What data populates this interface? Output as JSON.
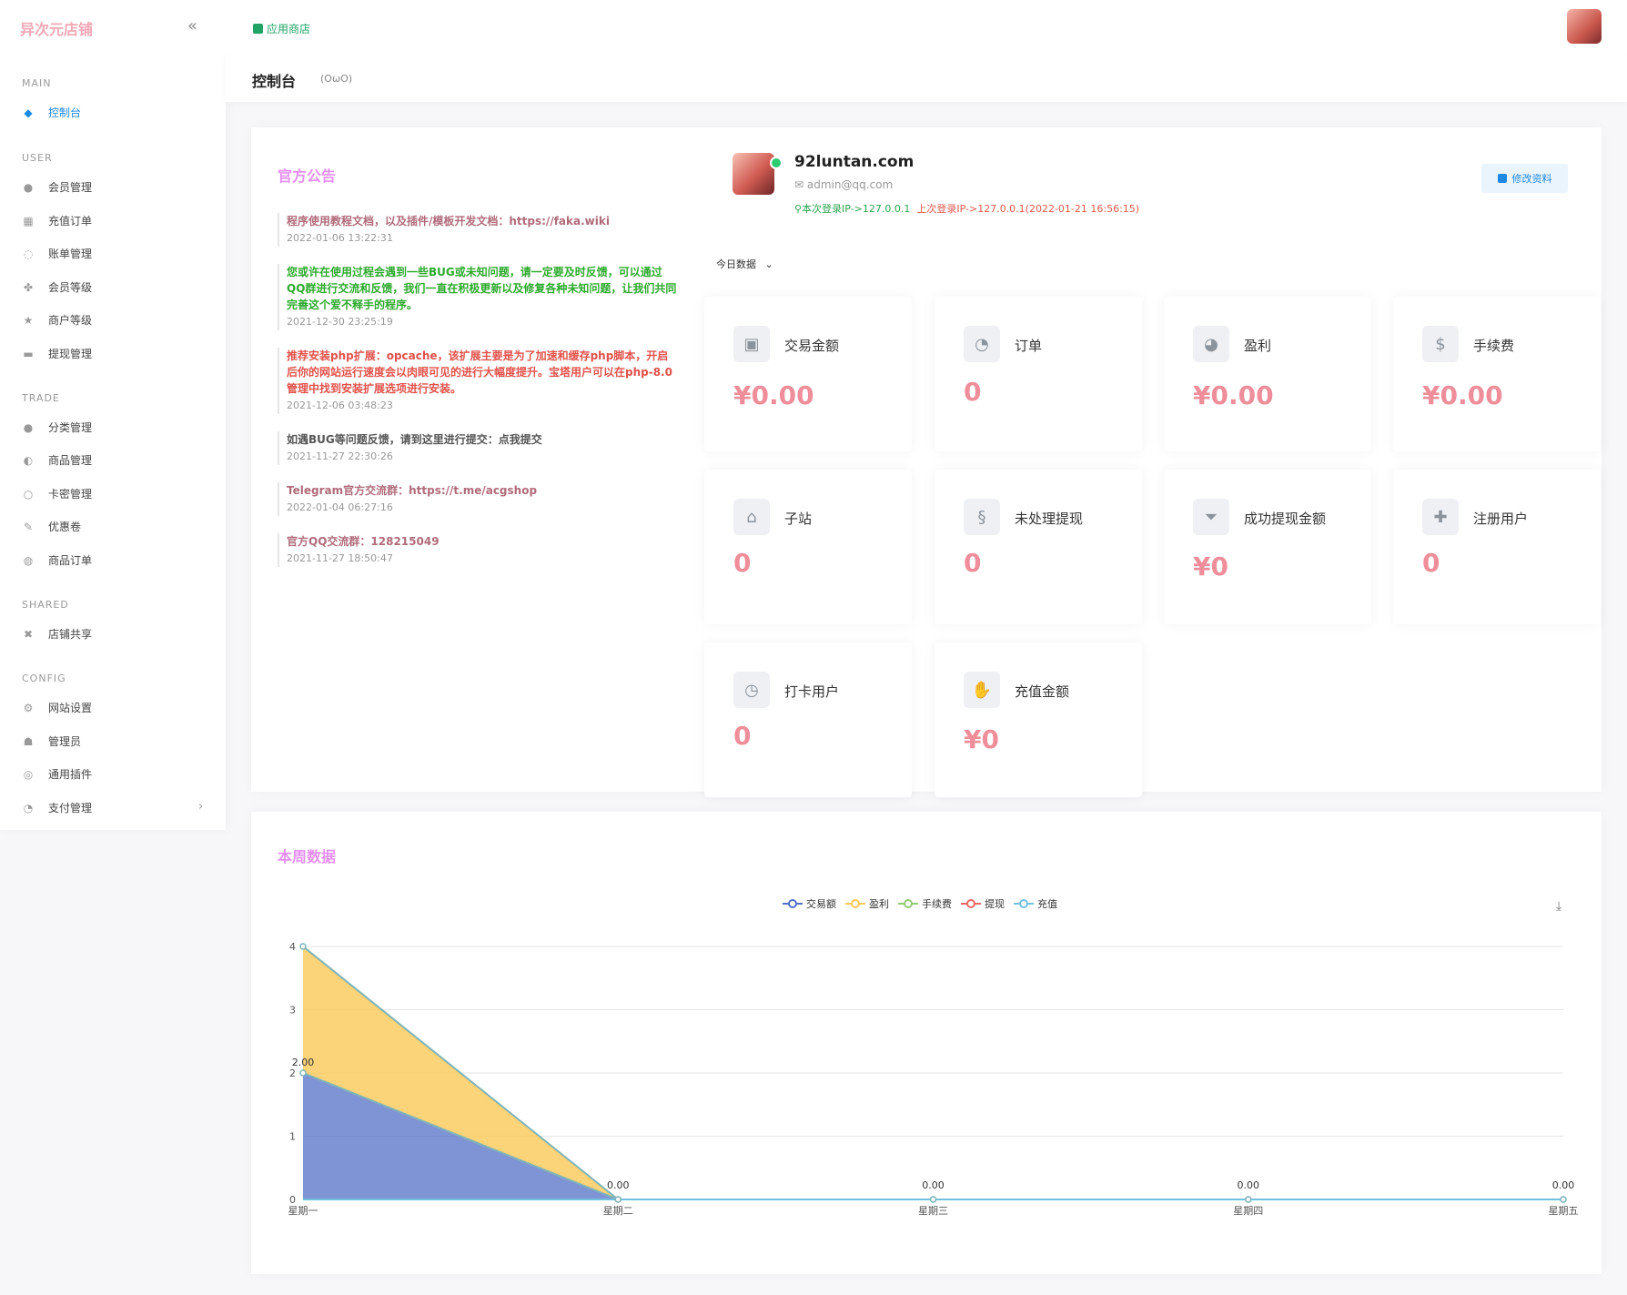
{
  "sidebar": {
    "brand": "异次元店铺",
    "sections": {
      "main": "MAIN",
      "user": "USER",
      "trade": "TRADE",
      "shared": "SHARED",
      "config": "CONFIG"
    },
    "items": [
      {
        "label": "控制台",
        "icon": "dashboard-icon"
      },
      {
        "label": "会员管理",
        "icon": "user-icon"
      },
      {
        "label": "充值订单",
        "icon": "recharge-icon"
      },
      {
        "label": "账单管理",
        "icon": "bill-icon"
      },
      {
        "label": "会员等级",
        "icon": "level-icon"
      },
      {
        "label": "商户等级",
        "icon": "merchant-icon"
      },
      {
        "label": "提现管理",
        "icon": "withdraw-icon"
      },
      {
        "label": "分类管理",
        "icon": "category-icon"
      },
      {
        "label": "商品管理",
        "icon": "product-icon"
      },
      {
        "label": "卡密管理",
        "icon": "card-icon"
      },
      {
        "label": "优惠卷",
        "icon": "coupon-icon"
      },
      {
        "label": "商品订单",
        "icon": "order-icon"
      },
      {
        "label": "店铺共享",
        "icon": "share-icon"
      },
      {
        "label": "网站设置",
        "icon": "settings-icon"
      },
      {
        "label": "管理员",
        "icon": "admin-icon"
      },
      {
        "label": "通用插件",
        "icon": "plugin-icon"
      },
      {
        "label": "支付管理",
        "icon": "payment-icon"
      }
    ]
  },
  "header": {
    "app_store": "应用商店",
    "page_title": "控制台",
    "page_sub": "(OωO)"
  },
  "announcements": {
    "title": "官方公告",
    "items": [
      {
        "text": "程序使用教程文档，以及插件/模板开发文档：https://faka.wiki",
        "time": "2022-01-06 13:22:31",
        "color": "#b06b7a"
      },
      {
        "text": "您或许在使用过程会遇到一些BUG或未知问题，请一定要及时反馈，可以通过QQ群进行交流和反馈，我们一直在积极更新以及修复各种未知问题，让我们共同完善这个爱不释手的程序。",
        "time": "2021-12-30 23:25:19",
        "color": "#2eaa2e"
      },
      {
        "text": "推荐安装php扩展：opcache，该扩展主要是为了加速和缓存php脚本，开启后你的网站运行速度会以肉眼可见的进行大幅度提升。宝塔用户可以在php-8.0管理中找到安装扩展选项进行安装。",
        "time": "2021-12-06 03:48:23",
        "color": "#e2514a"
      },
      {
        "text": "如遇BUG等问题反馈，请到这里进行提交：点我提交",
        "time": "2021-11-27 22:30:26",
        "color": "#555555"
      },
      {
        "text": "Telegram官方交流群：https://t.me/acgshop",
        "time": "2022-01-04 06:27:16",
        "color": "#b06b7a"
      },
      {
        "text": "官方QQ交流群：128215049",
        "time": "2021-11-27 18:50:47",
        "color": "#b06b7a"
      }
    ]
  },
  "profile": {
    "name": "92luntan.com",
    "email": "admin@qq.com",
    "current_ip": "本次登录IP->127.0.0.1",
    "last_ip": "上次登录IP->127.0.0.1(2022-01-21 16:56:15)",
    "edit_label": "修改资料",
    "today_label": "今日数据"
  },
  "stats": [
    {
      "label": "交易金额",
      "value": "¥0.00",
      "icon": "bag-icon"
    },
    {
      "label": "订单",
      "value": "0",
      "icon": "pie-icon"
    },
    {
      "label": "盈利",
      "value": "¥0.00",
      "icon": "pie-icon"
    },
    {
      "label": "手续费",
      "value": "¥0.00",
      "icon": "coin-icon"
    },
    {
      "label": "子站",
      "value": "0",
      "icon": "house-icon"
    },
    {
      "label": "未处理提现",
      "value": "0",
      "icon": "dollar-icon"
    },
    {
      "label": "成功提现金额",
      "value": "¥0",
      "icon": "funnel-dollar-icon"
    },
    {
      "label": "注册用户",
      "value": "0",
      "icon": "user-plus-icon"
    },
    {
      "label": "打卡用户",
      "value": "0",
      "icon": "clock-icon"
    },
    {
      "label": "充值金额",
      "value": "¥0",
      "icon": "hand-coin-icon"
    }
  ],
  "week": {
    "title": "本周数据",
    "download_icon": "download-icon"
  },
  "chart_data": {
    "type": "area",
    "categories": [
      "星期一",
      "星期二",
      "星期三",
      "星期四",
      "星期五"
    ],
    "ylim": [
      0,
      4
    ],
    "yticks": [
      "0",
      "1",
      "2",
      "3",
      "4"
    ],
    "series": [
      {
        "name": "交易额",
        "color": "#5470c6",
        "values": [
          2,
          0,
          0,
          0,
          0
        ]
      },
      {
        "name": "盈利",
        "color": "#fac858",
        "values": [
          2,
          0,
          0,
          0,
          0
        ]
      },
      {
        "name": "手续费",
        "color": "#91cc75",
        "values": [
          0,
          0,
          0,
          0,
          0
        ]
      },
      {
        "name": "提现",
        "color": "#ee6666",
        "values": [
          0,
          0,
          0,
          0,
          0
        ]
      },
      {
        "name": "充值",
        "color": "#73c0de",
        "values": [
          0,
          0,
          0,
          0,
          0
        ]
      }
    ],
    "data_labels": [
      "2.00",
      "0.00",
      "0.00",
      "0.00",
      "0.00"
    ]
  }
}
